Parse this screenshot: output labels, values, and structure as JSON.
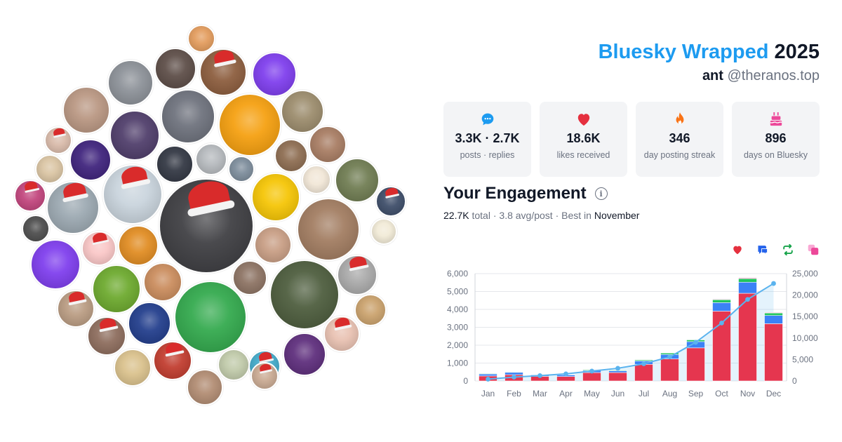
{
  "header": {
    "brand": "Bluesky Wrapped",
    "year": "2025",
    "display_name": "ant",
    "handle": "@theranos.top"
  },
  "stats": [
    {
      "icon": "speech-bubble-icon",
      "color": "#1d9bf0",
      "value": "3.3K · 2.7K",
      "label": "posts · replies"
    },
    {
      "icon": "heart-icon",
      "color": "#e5303f",
      "value": "18.6K",
      "label": "likes received"
    },
    {
      "icon": "flame-icon",
      "color": "#f97316",
      "value": "346",
      "label": "day posting streak"
    },
    {
      "icon": "cake-icon",
      "color": "#ec4899",
      "value": "896",
      "label": "days on Bluesky"
    }
  ],
  "engagement": {
    "title": "Your Engagement",
    "total_value": "22.7K",
    "total_label": "total",
    "avg_text": "3.8 avg/post",
    "best_label": "Best in",
    "best_month": "November",
    "sep": "·",
    "legend": [
      {
        "icon": "heart-icon",
        "color": "#e5303f"
      },
      {
        "icon": "reply-icon",
        "color": "#2563eb"
      },
      {
        "icon": "repost-icon",
        "color": "#16a34a"
      },
      {
        "icon": "quote-icon",
        "color": "#ec4899"
      }
    ]
  },
  "chart_data": {
    "type": "bar",
    "categories": [
      "Jan",
      "Feb",
      "Mar",
      "Apr",
      "May",
      "Jun",
      "Jul",
      "Aug",
      "Sep",
      "Oct",
      "Nov",
      "Dec"
    ],
    "series": [
      {
        "values": [
          280,
          350,
          260,
          250,
          470,
          470,
          930,
          1230,
          1850,
          3900,
          4900,
          3200
        ],
        "color": "#e5364f"
      },
      {
        "values": [
          110,
          130,
          80,
          90,
          110,
          100,
          190,
          250,
          350,
          480,
          620,
          460
        ],
        "color": "#3b82f6"
      },
      {
        "values": [
          30,
          30,
          20,
          20,
          40,
          40,
          60,
          80,
          100,
          160,
          200,
          140
        ],
        "color": "#22c55e"
      },
      {
        "values": [
          10,
          10,
          10,
          10,
          10,
          10,
          20,
          20,
          20,
          30,
          40,
          30
        ],
        "color": "#ec4899"
      }
    ],
    "cumulative": {
      "values": [
        420,
        900,
        1250,
        1650,
        2300,
        2950,
        4000,
        5600,
        9000,
        13500,
        19000,
        22700
      ],
      "color": "#5ab3ee"
    },
    "y_left": {
      "ticks": [
        "0",
        "1,000",
        "2,000",
        "3,000",
        "4,000",
        "5,000",
        "6,000"
      ],
      "max": 6000
    },
    "y_right": {
      "ticks": [
        "0",
        "5,000",
        "10,000",
        "15,000",
        "20,000",
        "25,000"
      ],
      "max": 25000
    },
    "grid": true
  },
  "avatars": [
    {
      "name": "avatar-sunset",
      "color": "#e29a5a"
    },
    {
      "name": "avatar-man-desk",
      "color": "#5a4a44"
    },
    {
      "name": "avatar-monkey-santa",
      "color": "#8a5a3a"
    },
    {
      "name": "avatar-green-face",
      "color": "#7c3aed"
    },
    {
      "name": "avatar-glasses-man",
      "color": "#8a8f96"
    },
    {
      "name": "avatar-two-men",
      "color": "#b89580"
    },
    {
      "name": "avatar-purple-cartoon",
      "color": "#4c3a68"
    },
    {
      "name": "avatar-man-suit",
      "color": "#6b6f7a"
    },
    {
      "name": "avatar-hat-man",
      "color": "#f59e0b"
    },
    {
      "name": "avatar-violin",
      "color": "#9a8a6a"
    },
    {
      "name": "avatar-santa-woman",
      "color": "#d8b9a8"
    },
    {
      "name": "avatar-cherries",
      "color": "#3b1f7a"
    },
    {
      "name": "avatar-blonde",
      "color": "#d9c3a1"
    },
    {
      "name": "avatar-smile-man",
      "color": "#a67a60"
    },
    {
      "name": "avatar-dark-room",
      "color": "#2f3440"
    },
    {
      "name": "avatar-young-man",
      "color": "#b4b8bc"
    },
    {
      "name": "avatar-bearded",
      "color": "#8b6a4e"
    },
    {
      "name": "avatar-bald-man",
      "color": "#7a8a99"
    },
    {
      "name": "avatar-colorful",
      "color": "#c0417a"
    },
    {
      "name": "avatar-glasses-santa",
      "color": "#9aa7b0"
    },
    {
      "name": "avatar-santa-hat-man",
      "color": "#c8d3dc"
    },
    {
      "name": "avatar-main",
      "color": "#3b3b3f"
    },
    {
      "name": "avatar-pop-crave",
      "color": "#f5c400"
    },
    {
      "name": "avatar-bunny",
      "color": "#f1e6d6"
    },
    {
      "name": "avatar-glasses-bearded",
      "color": "#6d7a4f"
    },
    {
      "name": "avatar-man-hoodie",
      "color": "#3a4a66"
    },
    {
      "name": "avatar-small-santa",
      "color": "#4a4a4a"
    },
    {
      "name": "avatar-moth",
      "color": "#7c3aed"
    },
    {
      "name": "avatar-pig-santa",
      "color": "#f9c5c5"
    },
    {
      "name": "avatar-garfield",
      "color": "#e08a1e"
    },
    {
      "name": "avatar-lying-man",
      "color": "#c79c82"
    },
    {
      "name": "avatar-cap-man",
      "color": "#a07a5e"
    },
    {
      "name": "avatar-meowth",
      "color": "#f1ead6"
    },
    {
      "name": "avatar-baked-beans",
      "color": "#6aa82a"
    },
    {
      "name": "avatar-redhead",
      "color": "#c98a5a"
    },
    {
      "name": "avatar-pochacco",
      "color": "#2fa84a"
    },
    {
      "name": "avatar-man-portrait",
      "color": "#8a7060"
    },
    {
      "name": "avatar-quang",
      "color": "#4a5a3a"
    },
    {
      "name": "avatar-anonymous",
      "color": "#a8a8a8"
    },
    {
      "name": "avatar-santa-man-2",
      "color": "#b89a80"
    },
    {
      "name": "avatar-blue-blur",
      "color": "#1e3a8a"
    },
    {
      "name": "avatar-party",
      "color": "#c9a06a"
    },
    {
      "name": "avatar-brown-blur",
      "color": "#8b6a5a"
    },
    {
      "name": "avatar-reindeer",
      "color": "#e8c0b0"
    },
    {
      "name": "avatar-santa-kid",
      "color": "#c0392b"
    },
    {
      "name": "avatar-man-closeup",
      "color": "#b08a70"
    },
    {
      "name": "avatar-blonde-man",
      "color": "#d9c08a"
    },
    {
      "name": "avatar-ghost",
      "color": "#bfc9a8"
    },
    {
      "name": "avatar-pokemon-santa",
      "color": "#3fa9c9"
    },
    {
      "name": "avatar-woman-dark",
      "color": "#5b2a7a"
    },
    {
      "name": "avatar-santa-smile",
      "color": "#c8a890"
    }
  ]
}
